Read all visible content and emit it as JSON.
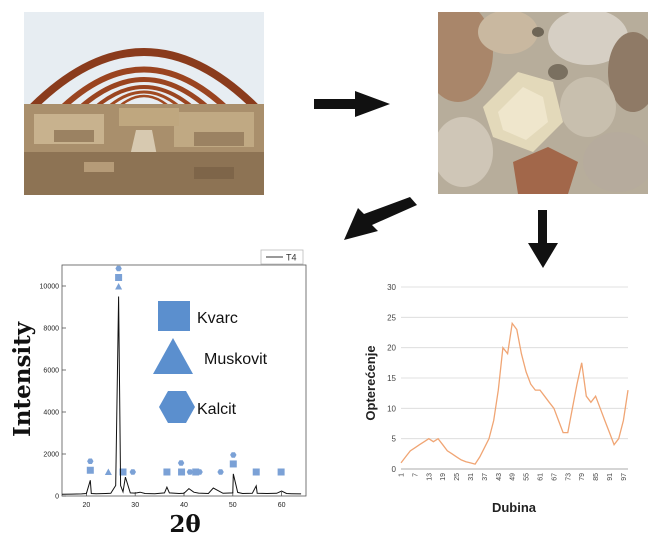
{
  "xrd_chart": {
    "legend_label": "T4",
    "ylabel": "Intensity",
    "xlabel": "2θ",
    "y_ticks": [
      "0",
      "2000",
      "4000",
      "6000",
      "8000",
      "10000"
    ],
    "x_ticks": [
      "20",
      "30",
      "40",
      "50",
      "60"
    ],
    "minerals": [
      {
        "name": "Kvarc",
        "shape": "square",
        "color": "#5b8fce"
      },
      {
        "name": "Muskovit",
        "shape": "triangle",
        "color": "#5b8fce"
      },
      {
        "name": "Kalcit",
        "shape": "hexagon",
        "color": "#5b8fce"
      }
    ]
  },
  "load_chart": {
    "ylabel": "Opterećenje",
    "xlabel": "Dubina",
    "y_ticks": [
      "0",
      "5",
      "10",
      "15",
      "20",
      "25",
      "30"
    ],
    "x_ticks": [
      "1",
      "7",
      "13",
      "19",
      "25",
      "31",
      "37",
      "43",
      "49",
      "55",
      "61",
      "67",
      "73",
      "79",
      "85",
      "91",
      "97"
    ]
  },
  "chart_data": [
    {
      "type": "line",
      "title": "",
      "xlabel": "2θ",
      "ylabel": "Intensity",
      "xlim": [
        15,
        65
      ],
      "ylim": [
        0,
        11000
      ],
      "series": [
        {
          "name": "T4",
          "x": [
            15,
            17,
            19,
            20,
            20.8,
            21,
            22,
            24,
            25,
            26,
            26.6,
            27,
            27.5,
            28,
            29,
            30,
            31,
            32,
            34,
            36,
            36.5,
            37,
            39,
            40,
            41,
            42,
            43,
            45,
            46,
            48,
            50,
            50.1,
            51,
            52,
            54,
            54.8,
            55,
            57,
            59,
            60,
            61,
            62,
            64
          ],
          "y": [
            80,
            90,
            100,
            120,
            750,
            120,
            110,
            120,
            130,
            500,
            9500,
            500,
            200,
            900,
            150,
            140,
            180,
            120,
            110,
            150,
            420,
            150,
            120,
            130,
            350,
            180,
            140,
            120,
            380,
            130,
            150,
            1050,
            170,
            120,
            130,
            480,
            130,
            120,
            130,
            240,
            120,
            110,
            100
          ]
        }
      ],
      "peak_markers": {
        "Kvarc": [
          20.8,
          26.6,
          27.5,
          36.5,
          39.5,
          42.4,
          50.1,
          54.8,
          59.9
        ],
        "Muskovit": [
          24.5,
          26.6
        ],
        "Kalcit": [
          20.8,
          26.6,
          29.5,
          39.4,
          41.2,
          43.2,
          47.5,
          50.1
        ]
      }
    },
    {
      "type": "line",
      "title": "",
      "xlabel": "Dubina",
      "ylabel": "Opterećenje",
      "ylim": [
        0,
        30
      ],
      "series": [
        {
          "name": "",
          "x": [
            1,
            3,
            5,
            7,
            9,
            11,
            13,
            15,
            17,
            19,
            21,
            23,
            25,
            27,
            29,
            31,
            33,
            35,
            37,
            39,
            41,
            43,
            45,
            47,
            49,
            51,
            53,
            55,
            57,
            59,
            61,
            63,
            65,
            67,
            69,
            71,
            73,
            75,
            77,
            79,
            81,
            83,
            85,
            87,
            89,
            91,
            93,
            95,
            97,
            99
          ],
          "y": [
            1,
            2,
            3,
            3.5,
            4,
            4.5,
            5,
            4.5,
            5,
            4,
            3,
            2.5,
            2,
            1.5,
            1.2,
            1,
            0.8,
            2,
            3.5,
            5,
            8,
            13,
            20,
            19,
            24,
            23,
            19,
            16,
            14,
            13,
            13,
            12,
            11,
            10,
            8,
            6,
            6,
            10,
            14,
            17.5,
            12,
            11,
            12,
            10,
            8,
            6,
            4,
            5,
            8,
            13
          ]
        }
      ]
    }
  ]
}
